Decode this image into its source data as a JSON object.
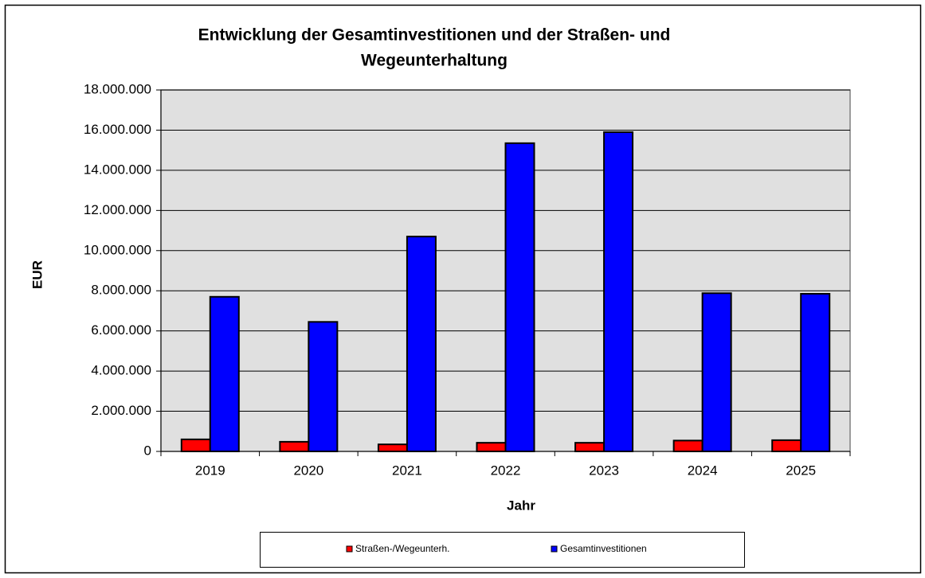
{
  "chart_data": {
    "type": "bar",
    "title": [
      "Entwicklung der Gesamtinvestitionen und der Straßen- und",
      "Wegeunterhaltung"
    ],
    "x_label": "Jahr",
    "y_label": "EUR",
    "categories": [
      "2019",
      "2020",
      "2021",
      "2022",
      "2023",
      "2024",
      "2025"
    ],
    "series": [
      {
        "name": "Straßen-/Wegeunterh.",
        "color": "#ff0000",
        "values": [
          600000,
          480000,
          350000,
          430000,
          430000,
          540000,
          560000
        ]
      },
      {
        "name": "Gesamtinvestitionen",
        "color": "#0000ff",
        "values": [
          7700000,
          6450000,
          10700000,
          15350000,
          15900000,
          7880000,
          7850000
        ]
      }
    ],
    "ylim": [
      0,
      18000000
    ],
    "yticks": [
      0,
      {
        "value": 2000000,
        "label": "2.000.000"
      },
      {
        "value": 4000000,
        "label": "4.000.000"
      },
      {
        "value": 6000000,
        "label": "6.000.000"
      },
      {
        "value": 8000000,
        "label": "8.000.000"
      },
      {
        "value": 10000000,
        "label": "10.000.000"
      },
      {
        "value": 12000000,
        "label": "12.000.000"
      },
      {
        "value": 14000000,
        "label": "14.000.000"
      },
      {
        "value": 16000000,
        "label": "16.000.000"
      },
      {
        "value": 18000000,
        "label": "18.000.000"
      }
    ],
    "grid": true,
    "legend": "bottom"
  }
}
